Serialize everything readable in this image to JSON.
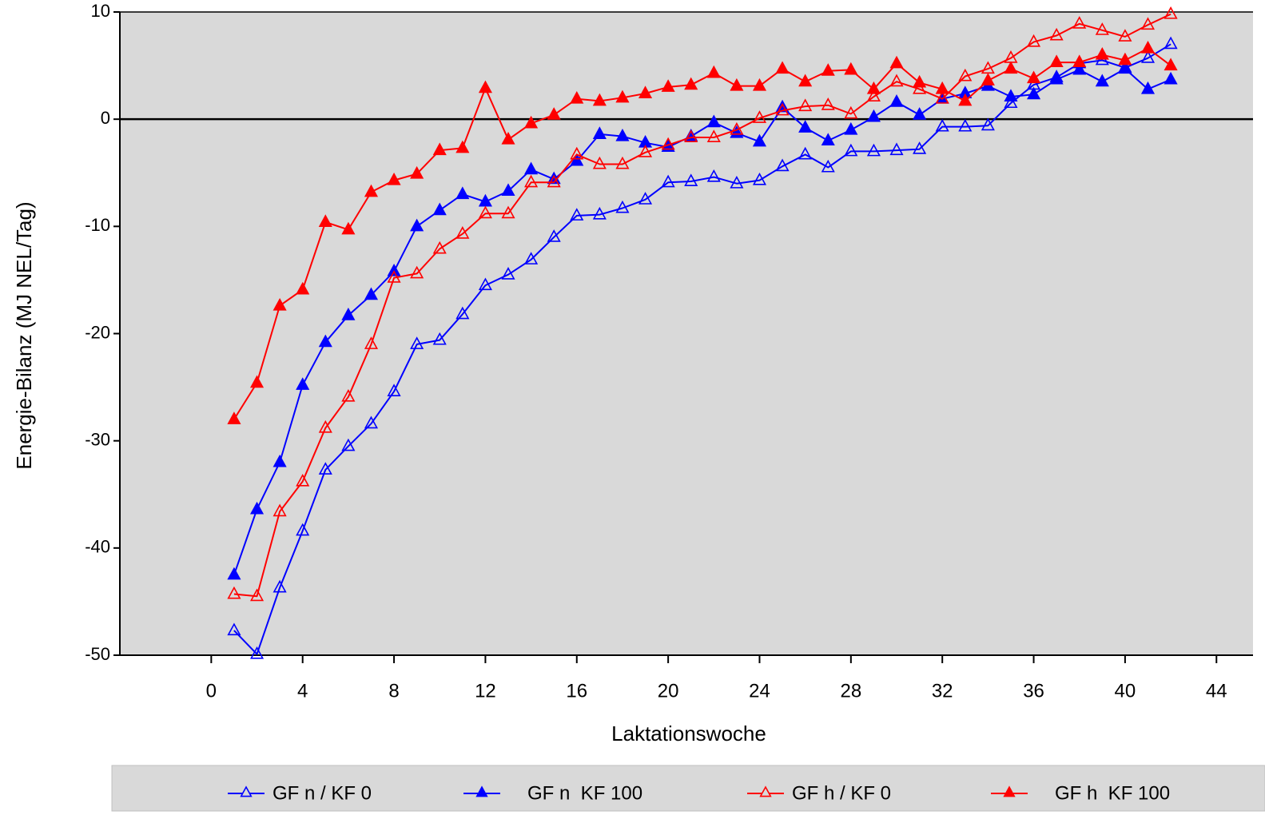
{
  "chart_data": {
    "type": "line",
    "xlabel": "Laktationswoche",
    "ylabel": "Energie-Bilanz (MJ NEL/Tag)",
    "xlim": [
      -4,
      45.6
    ],
    "ylim": [
      -50,
      10
    ],
    "xticks": [
      0,
      4,
      8,
      12,
      16,
      20,
      24,
      28,
      32,
      36,
      40,
      44
    ],
    "yticks": [
      -50,
      -40,
      -30,
      -20,
      -10,
      0,
      10
    ],
    "legend": "bottom",
    "x": [
      1,
      2,
      3,
      4,
      5,
      6,
      7,
      8,
      9,
      10,
      11,
      12,
      13,
      14,
      15,
      16,
      17,
      18,
      19,
      20,
      21,
      22,
      23,
      24,
      25,
      26,
      27,
      28,
      29,
      30,
      31,
      32,
      33,
      34,
      35,
      36,
      37,
      38,
      39,
      40,
      41,
      42
    ],
    "series": [
      {
        "name": "GF n / KF 0",
        "color": "#0000ff",
        "filled": false,
        "values": [
          -47.7,
          -49.9,
          -43.7,
          -38.4,
          -32.7,
          -30.5,
          -28.4,
          -25.4,
          -21.0,
          -20.6,
          -18.2,
          -15.5,
          -14.5,
          -13.1,
          -11.0,
          -9.0,
          -8.9,
          -8.3,
          -7.5,
          -5.9,
          -5.8,
          -5.4,
          -6.0,
          -5.7,
          -4.4,
          -3.3,
          -4.5,
          -3.0,
          -3.0,
          -2.9,
          -2.8,
          -0.7,
          -0.7,
          -0.6,
          1.5,
          3.2,
          3.9,
          5.2,
          5.5,
          4.8,
          5.7,
          7.0
        ]
      },
      {
        "name": "GF n  KF 100",
        "color": "#0000ff",
        "filled": true,
        "values": [
          -42.5,
          -36.4,
          -32.0,
          -24.8,
          -20.8,
          -18.3,
          -16.4,
          -14.2,
          -10.0,
          -8.5,
          -7.0,
          -7.7,
          -6.7,
          -4.7,
          -5.6,
          -3.9,
          -1.4,
          -1.6,
          -2.2,
          -2.6,
          -1.6,
          -0.3,
          -1.3,
          -2.1,
          1.1,
          -0.8,
          -2.0,
          -1.0,
          0.2,
          1.6,
          0.4,
          1.9,
          2.4,
          3.1,
          2.1,
          2.3,
          3.7,
          4.6,
          3.5,
          4.7,
          2.8,
          3.7
        ]
      },
      {
        "name": "GF h / KF 0",
        "color": "#ff0000",
        "filled": false,
        "values": [
          -44.3,
          -44.5,
          -36.6,
          -33.8,
          -28.8,
          -25.9,
          -21.0,
          -14.8,
          -14.4,
          -12.1,
          -10.7,
          -8.8,
          -8.8,
          -5.9,
          -5.9,
          -3.3,
          -4.2,
          -4.2,
          -3.1,
          -2.4,
          -1.7,
          -1.7,
          -1.0,
          0.1,
          0.8,
          1.2,
          1.3,
          0.5,
          2.1,
          3.5,
          2.8,
          1.9,
          4.0,
          4.7,
          5.7,
          7.2,
          7.8,
          8.9,
          8.3,
          7.7,
          8.8,
          9.8
        ]
      },
      {
        "name": "GF h  KF 100",
        "color": "#ff0000",
        "filled": true,
        "values": [
          -28.0,
          -24.6,
          -17.4,
          -15.9,
          -9.6,
          -10.3,
          -6.8,
          -5.7,
          -5.1,
          -2.9,
          -2.7,
          2.9,
          -1.9,
          -0.4,
          0.4,
          1.9,
          1.7,
          2.0,
          2.4,
          3.0,
          3.2,
          4.3,
          3.1,
          3.1,
          4.7,
          3.5,
          4.5,
          4.6,
          2.8,
          5.2,
          3.4,
          2.8,
          1.7,
          3.6,
          4.7,
          3.8,
          5.3,
          5.3,
          6.0,
          5.5,
          6.6,
          5.0
        ]
      }
    ]
  }
}
